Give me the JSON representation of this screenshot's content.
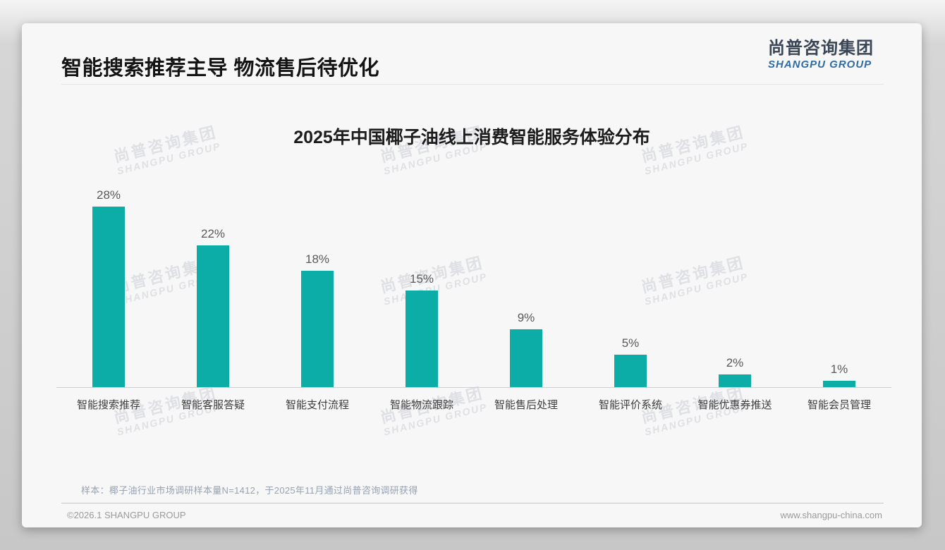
{
  "page": {
    "header_title": "智能搜索推荐主导 物流售后待优化",
    "logo": {
      "cn": "尚普咨询集团",
      "en": "SHANGPU GROUP"
    },
    "watermark": {
      "line1": "尚普咨询集团",
      "line2": "SHANGPU GROUP"
    },
    "sample_note": "样本：椰子油行业市场调研样本量N=1412，于2025年11月通过尚普咨询调研获得",
    "footer": {
      "left": "©2026.1 SHANGPU GROUP",
      "right": "www.shangpu-china.com"
    }
  },
  "chart_data": {
    "type": "bar",
    "title": "2025年中国椰子油线上消费智能服务体验分布",
    "categories": [
      "智能搜索推荐",
      "智能客服答疑",
      "智能支付流程",
      "智能物流跟踪",
      "智能售后处理",
      "智能评价系统",
      "智能优惠券推送",
      "智能会员管理"
    ],
    "values": [
      28,
      22,
      18,
      15,
      9,
      5,
      2,
      1
    ],
    "value_suffix": "%",
    "xlabel": "",
    "ylabel": "",
    "ylim": [
      0,
      30
    ],
    "grid": false,
    "legend_position": "none",
    "bar_color": "#0CADA6",
    "value_label_color": "#595959",
    "axis_line_color": "#cfcfcf"
  }
}
